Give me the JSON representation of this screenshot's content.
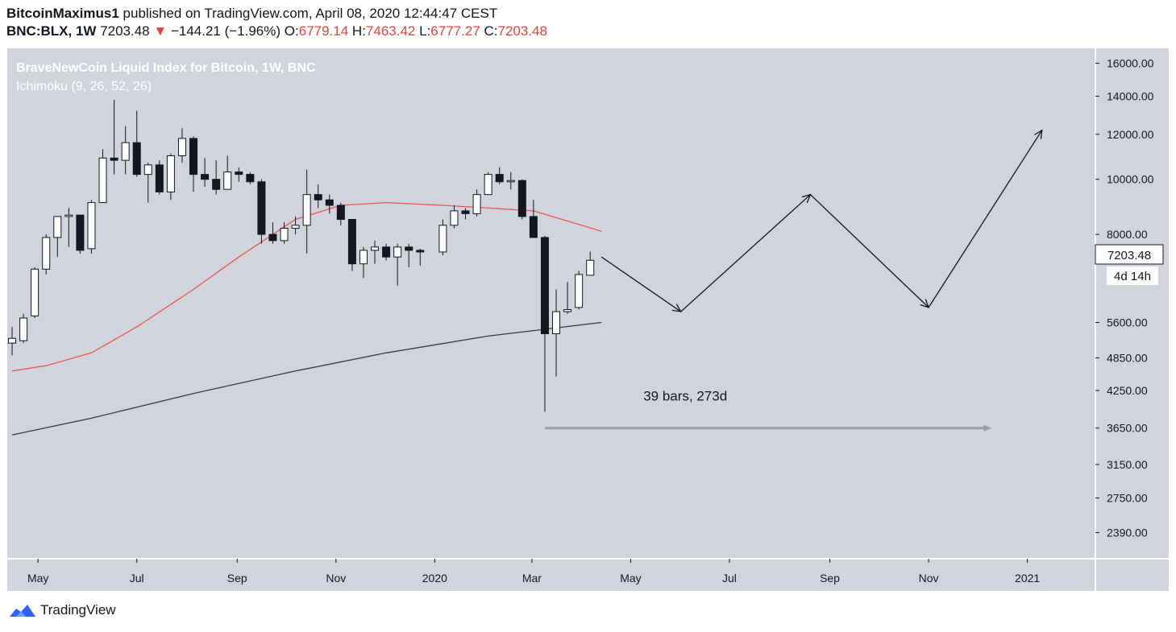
{
  "header": {
    "author": "BitcoinMaximus1",
    "published_text": "published on TradingView.com, April 08, 2020 12:44:47 CEST",
    "symbol": "BNC:BLX, 1W",
    "last_price": "7203.48",
    "change_text": "−144.21 (−1.96%)",
    "o_label": "O:",
    "o_value": "6779.14",
    "h_label": "H:",
    "h_value": "7463.42",
    "l_label": "L:",
    "l_value": "6777.27",
    "c_label": "C:",
    "c_value": "7203.48"
  },
  "legend": {
    "title": "BraveNewCoin Liquid Index for Bitcoin, 1W, BNC",
    "indicator": "Ichimoku (9, 26, 52, 26)"
  },
  "annotation": {
    "range_label": "39 bars, 273d"
  },
  "price_badge": {
    "price": "7203.48",
    "countdown": "4d 14h"
  },
  "footer": {
    "brand": "TradingView"
  },
  "colors": {
    "pane_bg": "#d1d4dd",
    "up_fill": "#ffffff",
    "down_fill": "#131722",
    "ma_red": "#e8574b",
    "ma_dark": "#3a3a3a",
    "arrow": "#131722",
    "logo_blue": "#2962ff"
  },
  "chart_data": {
    "type": "candlestick",
    "title": "BraveNewCoin Liquid Index for Bitcoin, 1W, BNC",
    "scale": "log",
    "ylim": [
      2150,
      17000
    ],
    "y_ticks": [
      16000,
      14000,
      12000,
      10000,
      8000,
      5600,
      4850,
      4250,
      3650,
      3150,
      2750,
      2390
    ],
    "y_tick_labels": [
      "16000.00",
      "14000.00",
      "12000.00",
      "10000.00",
      "8000.00",
      "5600.00",
      "4850.00",
      "4250.00",
      "3650.00",
      "3150.00",
      "2750.00",
      "2390.00"
    ],
    "x_ticks": [
      {
        "date": "2019-05-01",
        "label": "May"
      },
      {
        "date": "2019-07-01",
        "label": "Jul"
      },
      {
        "date": "2019-09-01",
        "label": "Sep"
      },
      {
        "date": "2019-11-01",
        "label": "Nov"
      },
      {
        "date": "2020-01-01",
        "label": "2020"
      },
      {
        "date": "2020-03-01",
        "label": "Mar"
      },
      {
        "date": "2020-05-01",
        "label": "May"
      },
      {
        "date": "2020-07-01",
        "label": "Jul"
      },
      {
        "date": "2020-09-01",
        "label": "Sep"
      },
      {
        "date": "2020-11-01",
        "label": "Nov"
      },
      {
        "date": "2021-01-01",
        "label": "2021"
      }
    ],
    "candles": [
      {
        "date": "2019-04-15",
        "o": 5150,
        "h": 5500,
        "l": 4900,
        "c": 5250
      },
      {
        "date": "2019-04-22",
        "o": 5200,
        "h": 5800,
        "l": 5150,
        "c": 5700
      },
      {
        "date": "2019-04-29",
        "o": 5750,
        "h": 7000,
        "l": 5700,
        "c": 6950
      },
      {
        "date": "2019-05-06",
        "o": 6950,
        "h": 8000,
        "l": 6800,
        "c": 7900
      },
      {
        "date": "2019-05-13",
        "o": 7900,
        "h": 8600,
        "l": 7300,
        "c": 8600
      },
      {
        "date": "2019-05-20",
        "o": 8600,
        "h": 8900,
        "l": 7600,
        "c": 8650
      },
      {
        "date": "2019-05-27",
        "o": 8650,
        "h": 8650,
        "l": 7400,
        "c": 7500
      },
      {
        "date": "2019-06-03",
        "o": 7550,
        "h": 9200,
        "l": 7400,
        "c": 9100
      },
      {
        "date": "2019-06-10",
        "o": 9100,
        "h": 11300,
        "l": 9100,
        "c": 10900
      },
      {
        "date": "2019-06-17",
        "o": 10900,
        "h": 13800,
        "l": 10200,
        "c": 10800
      },
      {
        "date": "2019-06-24",
        "o": 10800,
        "h": 12400,
        "l": 10200,
        "c": 11600
      },
      {
        "date": "2019-07-01",
        "o": 11600,
        "h": 13200,
        "l": 10100,
        "c": 10200
      },
      {
        "date": "2019-07-08",
        "o": 10200,
        "h": 10700,
        "l": 9100,
        "c": 10600
      },
      {
        "date": "2019-07-15",
        "o": 10600,
        "h": 10800,
        "l": 9400,
        "c": 9500
      },
      {
        "date": "2019-07-22",
        "o": 9500,
        "h": 11100,
        "l": 9200,
        "c": 11000
      },
      {
        "date": "2019-07-29",
        "o": 11000,
        "h": 12300,
        "l": 10700,
        "c": 11800
      },
      {
        "date": "2019-08-05",
        "o": 11800,
        "h": 11900,
        "l": 9500,
        "c": 10200
      },
      {
        "date": "2019-08-12",
        "o": 10200,
        "h": 10900,
        "l": 9700,
        "c": 10000
      },
      {
        "date": "2019-08-19",
        "o": 10000,
        "h": 10800,
        "l": 9400,
        "c": 9600
      },
      {
        "date": "2019-08-26",
        "o": 9600,
        "h": 11000,
        "l": 9600,
        "c": 10300
      },
      {
        "date": "2019-09-02",
        "o": 10300,
        "h": 10500,
        "l": 9900,
        "c": 10200
      },
      {
        "date": "2019-09-09",
        "o": 10200,
        "h": 10300,
        "l": 9800,
        "c": 9900
      },
      {
        "date": "2019-09-16",
        "o": 9900,
        "h": 10000,
        "l": 7700,
        "c": 8000
      },
      {
        "date": "2019-09-23",
        "o": 8000,
        "h": 8400,
        "l": 7700,
        "c": 7800
      },
      {
        "date": "2019-09-30",
        "o": 7800,
        "h": 8400,
        "l": 7700,
        "c": 8200
      },
      {
        "date": "2019-10-07",
        "o": 8200,
        "h": 8600,
        "l": 8000,
        "c": 8300
      },
      {
        "date": "2019-10-14",
        "o": 8300,
        "h": 10400,
        "l": 7400,
        "c": 9400
      },
      {
        "date": "2019-10-21",
        "o": 9400,
        "h": 9800,
        "l": 8900,
        "c": 9200
      },
      {
        "date": "2019-10-28",
        "o": 9200,
        "h": 9400,
        "l": 8700,
        "c": 9000
      },
      {
        "date": "2019-11-04",
        "o": 9000,
        "h": 9100,
        "l": 8300,
        "c": 8500
      },
      {
        "date": "2019-11-11",
        "o": 8500,
        "h": 8500,
        "l": 6900,
        "c": 7100
      },
      {
        "date": "2019-11-18",
        "o": 7100,
        "h": 7600,
        "l": 6700,
        "c": 7500
      },
      {
        "date": "2019-11-25",
        "o": 7500,
        "h": 7800,
        "l": 7100,
        "c": 7600
      },
      {
        "date": "2019-12-02",
        "o": 7600,
        "h": 7700,
        "l": 7200,
        "c": 7300
      },
      {
        "date": "2019-12-09",
        "o": 7300,
        "h": 7700,
        "l": 6500,
        "c": 7600
      },
      {
        "date": "2019-12-16",
        "o": 7600,
        "h": 7700,
        "l": 7000,
        "c": 7500
      },
      {
        "date": "2019-12-23",
        "o": 7500,
        "h": 7550,
        "l": 7050,
        "c": 7450
      },
      {
        "date": "2020-01-06",
        "o": 7450,
        "h": 8500,
        "l": 7350,
        "c": 8300
      },
      {
        "date": "2020-01-13",
        "o": 8300,
        "h": 9000,
        "l": 8200,
        "c": 8800
      },
      {
        "date": "2020-01-20",
        "o": 8800,
        "h": 8900,
        "l": 8500,
        "c": 8700
      },
      {
        "date": "2020-01-27",
        "o": 8700,
        "h": 9600,
        "l": 8600,
        "c": 9400
      },
      {
        "date": "2020-02-03",
        "o": 9400,
        "h": 10300,
        "l": 9400,
        "c": 10200
      },
      {
        "date": "2020-02-10",
        "o": 10200,
        "h": 10500,
        "l": 9800,
        "c": 9900
      },
      {
        "date": "2020-02-17",
        "o": 9900,
        "h": 10300,
        "l": 9600,
        "c": 9950
      },
      {
        "date": "2020-02-24",
        "o": 9950,
        "h": 10000,
        "l": 8500,
        "c": 8600
      },
      {
        "date": "2020-03-02",
        "o": 8600,
        "h": 9200,
        "l": 7900,
        "c": 7900
      },
      {
        "date": "2020-03-09",
        "o": 7900,
        "h": 7950,
        "l": 3900,
        "c": 5350
      },
      {
        "date": "2020-03-16",
        "o": 5350,
        "h": 6400,
        "l": 4500,
        "c": 5850
      },
      {
        "date": "2020-03-23",
        "o": 5850,
        "h": 6600,
        "l": 5800,
        "c": 5900
      },
      {
        "date": "2020-03-30",
        "o": 5950,
        "h": 6900,
        "l": 5900,
        "c": 6800
      },
      {
        "date": "2020-04-06",
        "o": 6779.14,
        "h": 7463.42,
        "l": 6777.27,
        "c": 7203.48
      }
    ],
    "series": [
      {
        "type": "line",
        "color": "#e8574b",
        "values": [
          {
            "date": "2019-04-15",
            "y": 4600
          },
          {
            "date": "2019-05-06",
            "y": 4700
          },
          {
            "date": "2019-06-03",
            "y": 4950
          },
          {
            "date": "2019-07-01",
            "y": 5500
          },
          {
            "date": "2019-08-05",
            "y": 6400
          },
          {
            "date": "2019-09-02",
            "y": 7300
          },
          {
            "date": "2019-10-07",
            "y": 8500
          },
          {
            "date": "2019-11-04",
            "y": 9000
          },
          {
            "date": "2019-12-02",
            "y": 9100
          },
          {
            "date": "2020-01-06",
            "y": 9000
          },
          {
            "date": "2020-02-03",
            "y": 8900
          },
          {
            "date": "2020-03-02",
            "y": 8800
          },
          {
            "date": "2020-04-13",
            "y": 8100
          }
        ]
      },
      {
        "type": "line",
        "color": "#3a3a3a",
        "values": [
          {
            "date": "2019-04-15",
            "y": 3550
          },
          {
            "date": "2019-06-03",
            "y": 3800
          },
          {
            "date": "2019-08-05",
            "y": 4200
          },
          {
            "date": "2019-10-07",
            "y": 4600
          },
          {
            "date": "2019-12-02",
            "y": 4950
          },
          {
            "date": "2020-02-03",
            "y": 5300
          },
          {
            "date": "2020-04-13",
            "y": 5600
          }
        ]
      }
    ],
    "projection": [
      {
        "date": "2020-04-13",
        "y": 7300
      },
      {
        "date": "2020-06-01",
        "y": 5850
      },
      {
        "date": "2020-08-20",
        "y": 9400
      },
      {
        "date": "2020-11-01",
        "y": 5950
      },
      {
        "date": "2021-01-10",
        "y": 12200
      }
    ],
    "date_range": {
      "from": "2020-03-09",
      "to": "2020-12-07",
      "y": 3650,
      "label": "39 bars, 273d"
    }
  }
}
